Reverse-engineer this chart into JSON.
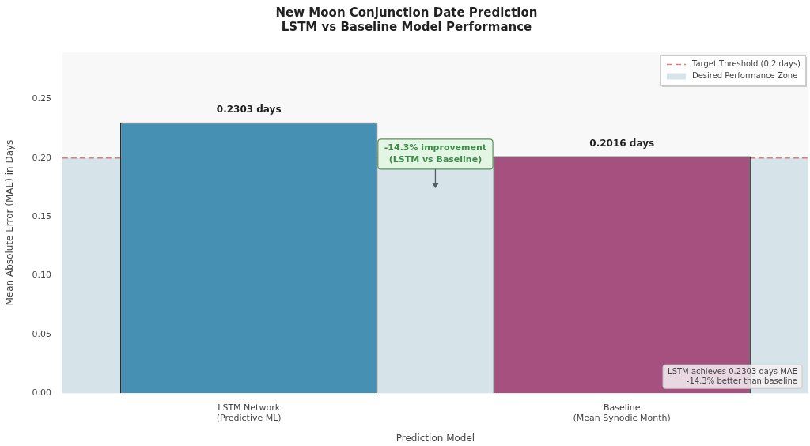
{
  "chart_data": {
    "type": "bar",
    "title": "New Moon Conjunction Date Prediction\nLSTM vs Baseline Model Performance",
    "xlabel": "Prediction Model",
    "ylabel": "Mean Absolute Error (MAE) in Days",
    "categories": [
      "LSTM Network\n(Predictive ML)",
      "Baseline\n(Mean Synodic Month)"
    ],
    "values": [
      0.2303,
      0.2016
    ],
    "colors": [
      "#4690b4",
      "#a5507f"
    ],
    "value_labels": [
      "0.2303 days",
      "0.2016 days"
    ],
    "ylim": [
      0,
      0.29
    ],
    "yticks": [
      {
        "value": 0,
        "label": "0.00"
      },
      {
        "value": 0.05,
        "label": "0.05"
      },
      {
        "value": 0.1,
        "label": "0.10"
      },
      {
        "value": 0.15,
        "label": "0.15"
      },
      {
        "value": 0.2,
        "label": "0.20"
      },
      {
        "value": 0.25,
        "label": "0.25"
      }
    ],
    "ref_lines": [
      {
        "axis": "y",
        "value": 0.2,
        "label": "Target Threshold (0.2 days)",
        "color": "#e07b7b",
        "line_style": "dashed"
      }
    ],
    "bands": [
      {
        "axis": "y",
        "from": 0,
        "to": 0.2,
        "label": "Desired Performance Zone",
        "color": "#d6e4ea"
      }
    ],
    "legend": "top right",
    "annotations": [
      "-14.3% improvement\n(LSTM vs Baseline)",
      "LSTM achieves 0.2303 days MAE\n-14.3% better than baseline"
    ]
  }
}
